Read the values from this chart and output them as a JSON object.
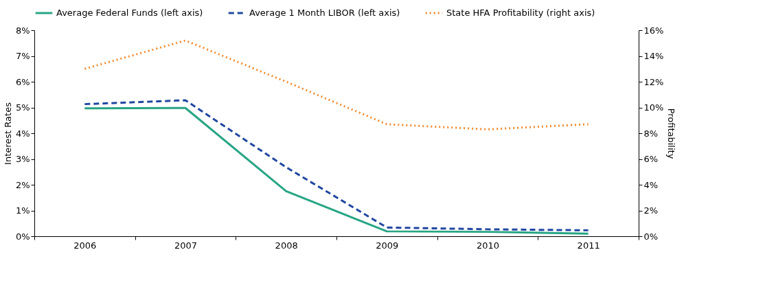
{
  "chart_data": {
    "type": "line",
    "ylabel": "Interest Rates",
    "y2label": "Profitability",
    "categories": [
      "2006",
      "2007",
      "2008",
      "2009",
      "2010",
      "2011"
    ],
    "series": [
      {
        "name": "Average Federal Funds (left axis)",
        "color": "#27a584",
        "line_style": "solid",
        "values": [
          4.97,
          4.98,
          1.75,
          0.19,
          0.17,
          0.1
        ]
      },
      {
        "name": "Average 1 Month LIBOR (left axis)",
        "color": "#2047a0",
        "line_style": "dashed",
        "values": [
          5.13,
          5.28,
          2.68,
          0.34,
          0.27,
          0.23
        ]
      },
      {
        "name": "State HFA Profitability (right axis)",
        "color": "#f28a30",
        "line_style": "dotted",
        "axis": "y2",
        "values": [
          13.0,
          15.2,
          12.0,
          8.7,
          8.3,
          8.7
        ]
      }
    ],
    "ylim": [
      0,
      8
    ],
    "yticks": [
      {
        "value": 0,
        "label": "0%"
      },
      {
        "value": 1,
        "label": "1%"
      },
      {
        "value": 2,
        "label": "2%"
      },
      {
        "value": 3,
        "label": "3%"
      },
      {
        "value": 4,
        "label": "4%"
      },
      {
        "value": 5,
        "label": "5%"
      },
      {
        "value": 6,
        "label": "6%"
      },
      {
        "value": 7,
        "label": "7%"
      },
      {
        "value": 8,
        "label": "8%"
      }
    ],
    "y2lim": [
      0,
      16
    ],
    "y2ticks": [
      {
        "value": 0,
        "label": "0%"
      },
      {
        "value": 2,
        "label": "2%"
      },
      {
        "value": 4,
        "label": "4%"
      },
      {
        "value": 6,
        "label": "6%"
      },
      {
        "value": 8,
        "label": "8%"
      },
      {
        "value": 10,
        "label": "10%"
      },
      {
        "value": 12,
        "label": "12%"
      },
      {
        "value": 14,
        "label": "14%"
      },
      {
        "value": 16,
        "label": "16%"
      }
    ],
    "grid": false,
    "legend": "top",
    "marker": "none"
  }
}
